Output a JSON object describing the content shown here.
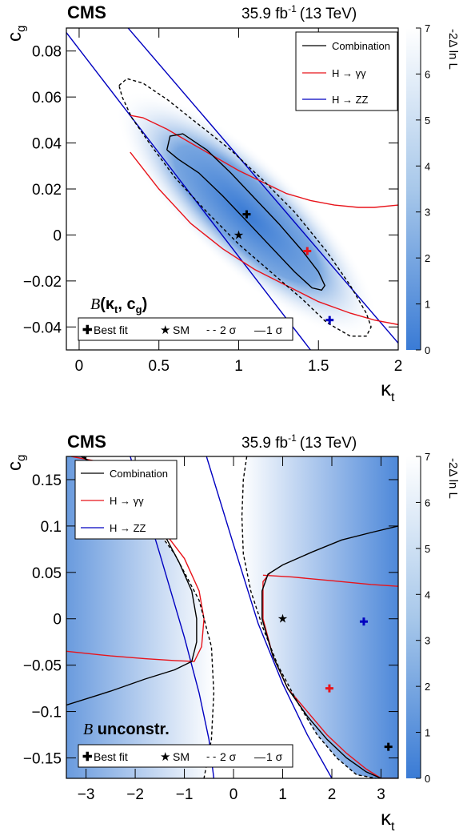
{
  "colors": {
    "combination": "#000000",
    "gammagamma": "#e8141b",
    "zz": "#0000c0",
    "colormap_low": "#3a7bd5",
    "colormap_high": "#ffffff"
  },
  "chart_data": [
    {
      "type": "heatmap",
      "experiment": "CMS",
      "luminosity": "35.9 fb",
      "lumi_exponent": "-1",
      "energy": "(13 TeV)",
      "xlabel": "κ",
      "xlabel_sub": "t",
      "ylabel": "c",
      "ylabel_sub": "g",
      "zlabel": "-2Δ ln L",
      "xlim": [
        -0.08,
        2.0
      ],
      "ylim": [
        -0.05,
        0.09
      ],
      "zlim": [
        0,
        7
      ],
      "x_ticks": [
        0,
        0.5,
        1,
        1.5,
        2
      ],
      "x_tick_labels": [
        "0",
        "0.5",
        "1",
        "1.5",
        "2"
      ],
      "y_ticks": [
        -0.04,
        -0.02,
        0,
        0.02,
        0.04,
        0.06,
        0.08
      ],
      "y_tick_labels": [
        "−0.04",
        "−0.02",
        "0",
        "0.02",
        "0.04",
        "0.06",
        "0.08"
      ],
      "z_ticks": [
        0,
        1,
        2,
        3,
        4,
        5,
        6,
        7
      ],
      "z_tick_labels": [
        "0",
        "1",
        "2",
        "3",
        "4",
        "5",
        "6",
        "7"
      ],
      "scenario_label": "B(κₜ, cᵍ)",
      "scenario_italic": "B",
      "scenario_rest": "(κ",
      "scenario_k_sub": "t",
      "scenario_mid": ", c",
      "scenario_c_sub": "g",
      "scenario_end": ")",
      "legend_placement": "top-right",
      "legend": [
        {
          "label": "Combination",
          "color": "#000000"
        },
        {
          "label": "H → γγ",
          "color": "#e8141b"
        },
        {
          "label": "H → ZZ",
          "color": "#0000c0"
        }
      ],
      "markers_legend": [
        {
          "symbol": "✚",
          "label": "Best fit"
        },
        {
          "symbol": "★",
          "label": "SM"
        },
        {
          "symbol": "- -",
          "label": "2 σ"
        },
        {
          "symbol": "—",
          "label": "1 σ"
        }
      ],
      "points": {
        "best_fit_combination": {
          "x": 1.05,
          "y": 0.009,
          "color": "#000000"
        },
        "sm": {
          "x": 1.0,
          "y": 0.0,
          "color": "#000000"
        },
        "best_fit_gammagamma": {
          "x": 1.43,
          "y": -0.007,
          "color": "#e8141b"
        },
        "best_fit_zz": {
          "x": 1.57,
          "y": -0.037,
          "color": "#0000c0"
        }
      },
      "heat_minimum": {
        "x": 1.05,
        "y": 0.009
      },
      "series": [
        {
          "name": "H → ZZ",
          "style": "solid",
          "color": "#0000c0",
          "x": [
            -0.08,
            1.45
          ],
          "y": [
            0.088,
            -0.05
          ]
        },
        {
          "name": "H → ZZ",
          "style": "solid",
          "color": "#0000c0",
          "x": [
            0.27,
            2.0
          ],
          "y": [
            0.093,
            -0.047
          ]
        },
        {
          "name": "H → γγ",
          "style": "solid",
          "color": "#e8141b",
          "x": [
            0.32,
            0.4,
            0.55,
            0.7,
            0.85,
            1.0,
            1.15,
            1.3,
            1.45,
            1.6,
            1.75,
            1.85,
            2.0
          ],
          "y": [
            0.052,
            0.051,
            0.046,
            0.04,
            0.034,
            0.028,
            0.023,
            0.018,
            0.015,
            0.013,
            0.012,
            0.012,
            0.013
          ]
        },
        {
          "name": "H → γγ",
          "style": "solid",
          "color": "#e8141b",
          "x": [
            0.32,
            0.5,
            0.7,
            0.9,
            1.1,
            1.3,
            1.5,
            1.7,
            1.85,
            2.0
          ],
          "y": [
            0.036,
            0.02,
            0.005,
            -0.006,
            -0.015,
            -0.022,
            -0.029,
            -0.034,
            -0.037,
            -0.039
          ]
        },
        {
          "name": "Combination",
          "style": "solid",
          "color": "#000000",
          "x": [
            0.55,
            0.57,
            0.65,
            0.8,
            0.95,
            1.1,
            1.25,
            1.4,
            1.5,
            1.54,
            1.52,
            1.46,
            1.35,
            1.2,
            1.05,
            0.9,
            0.75,
            0.62,
            0.55
          ],
          "y": [
            0.037,
            0.043,
            0.044,
            0.037,
            0.027,
            0.016,
            0.005,
            -0.007,
            -0.016,
            -0.022,
            -0.024,
            -0.023,
            -0.016,
            -0.005,
            0.006,
            0.017,
            0.027,
            0.033,
            0.037
          ]
        },
        {
          "name": "Combination",
          "style": "dashed",
          "color": "#000000",
          "x": [
            0.25,
            0.3,
            0.4,
            0.55,
            0.75,
            0.95,
            1.15,
            1.35,
            1.55,
            1.7,
            1.8,
            1.83,
            1.8,
            1.7,
            1.55,
            1.4,
            1.2,
            1.0,
            0.8,
            0.6,
            0.45,
            0.33,
            0.27,
            0.25
          ],
          "y": [
            0.065,
            0.068,
            0.066,
            0.059,
            0.048,
            0.037,
            0.024,
            0.01,
            -0.007,
            -0.022,
            -0.034,
            -0.04,
            -0.044,
            -0.044,
            -0.038,
            -0.028,
            -0.016,
            -0.004,
            0.01,
            0.025,
            0.039,
            0.051,
            0.06,
            0.065
          ]
        }
      ]
    },
    {
      "type": "heatmap",
      "experiment": "CMS",
      "luminosity": "35.9 fb",
      "lumi_exponent": "-1",
      "energy": "(13 TeV)",
      "xlabel": "κ",
      "xlabel_sub": "t",
      "ylabel": "c",
      "ylabel_sub": "g",
      "zlabel": "-2Δ ln L",
      "xlim": [
        -3.4,
        3.35
      ],
      "ylim": [
        -0.172,
        0.175
      ],
      "zlim": [
        0,
        7
      ],
      "x_ticks": [
        -3,
        -2,
        -1,
        0,
        1,
        2,
        3
      ],
      "x_tick_labels": [
        "−3",
        "−2",
        "−1",
        "0",
        "1",
        "2",
        "3"
      ],
      "y_ticks": [
        -0.15,
        -0.1,
        -0.05,
        0,
        0.05,
        0.1,
        0.15
      ],
      "y_tick_labels": [
        "−0.15",
        "−0.1",
        "−0.05",
        "0",
        "0.05",
        "0.1",
        "0.15"
      ],
      "z_ticks": [
        0,
        1,
        2,
        3,
        4,
        5,
        6,
        7
      ],
      "z_tick_labels": [
        "0",
        "1",
        "2",
        "3",
        "4",
        "5",
        "6",
        "7"
      ],
      "scenario_italic": "B",
      "scenario_rest": " unconstr.",
      "legend_placement": "top-left",
      "legend": [
        {
          "label": "Combination",
          "color": "#000000"
        },
        {
          "label": "H → γγ",
          "color": "#e8141b"
        },
        {
          "label": "H → ZZ",
          "color": "#0000c0"
        }
      ],
      "markers_legend": [
        {
          "symbol": "✚",
          "label": "Best fit"
        },
        {
          "symbol": "★",
          "label": "SM"
        },
        {
          "symbol": "- -",
          "label": "2 σ"
        },
        {
          "symbol": "—",
          "label": "1 σ"
        }
      ],
      "points": {
        "best_fit_combination": {
          "x": 3.15,
          "y": -0.138,
          "color": "#000000"
        },
        "sm": {
          "x": 1.0,
          "y": 0.0,
          "color": "#000000"
        },
        "best_fit_gammagamma": {
          "x": 1.95,
          "y": -0.075,
          "color": "#e8141b"
        },
        "best_fit_zz": {
          "x": 2.65,
          "y": -0.003,
          "color": "#0000c0"
        }
      },
      "series": [
        {
          "name": "H → ZZ",
          "style": "solid",
          "color": "#0000c0",
          "x": [
            -2.1,
            -1.5,
            -1.0,
            -0.7,
            -0.5,
            -0.4
          ],
          "y": [
            0.175,
            0.07,
            -0.02,
            -0.08,
            -0.13,
            -0.172
          ]
        },
        {
          "name": "H → ZZ",
          "style": "solid",
          "color": "#0000c0",
          "x": [
            -0.55,
            0.0,
            0.5,
            1.0,
            1.5,
            2.0
          ],
          "y": [
            0.175,
            0.08,
            -0.005,
            -0.07,
            -0.125,
            -0.172
          ]
        },
        {
          "name": "H → γγ",
          "style": "solid",
          "color": "#e8141b",
          "x": [
            -3.4,
            -2.5,
            -1.8,
            -1.2,
            -0.8,
            -0.65,
            -0.6,
            -0.7,
            -1.0,
            -1.5,
            -2.1,
            -2.8,
            -3.3
          ],
          "y": [
            -0.035,
            -0.04,
            -0.043,
            -0.045,
            -0.046,
            -0.03,
            0.0,
            0.03,
            0.065,
            0.1,
            0.14,
            0.17,
            0.175
          ]
        },
        {
          "name": "H → γγ",
          "style": "solid",
          "color": "#e8141b",
          "x": [
            0.75,
            0.6,
            0.6,
            0.8,
            1.1,
            1.5,
            1.9,
            2.3,
            2.7,
            3.0,
            3.3
          ],
          "y": [
            0.05,
            0.04,
            0.0,
            -0.04,
            -0.075,
            -0.1,
            -0.125,
            -0.145,
            -0.162,
            -0.172,
            -0.172
          ]
        },
        {
          "name": "H → γγ",
          "style": "solid",
          "color": "#e8141b",
          "x": [
            0.6,
            1.2,
            2.0,
            2.8,
            3.35
          ],
          "y": [
            0.047,
            0.045,
            0.041,
            0.037,
            0.035
          ]
        },
        {
          "name": "Combination",
          "style": "solid",
          "color": "#000000",
          "x": [
            -3.4,
            -2.5,
            -1.8,
            -1.2,
            -0.85,
            -0.75,
            -0.75,
            -0.85,
            -1.1,
            -1.5,
            -2.0,
            -2.6,
            -3.1
          ],
          "y": [
            -0.093,
            -0.078,
            -0.065,
            -0.055,
            -0.046,
            -0.025,
            0.0,
            0.03,
            0.06,
            0.1,
            0.13,
            0.16,
            0.175
          ]
        },
        {
          "name": "Combination",
          "style": "solid",
          "color": "#000000",
          "x": [
            3.35,
            2.8,
            2.2,
            1.6,
            1.0,
            0.7,
            0.58,
            0.58,
            0.8,
            1.1,
            1.5,
            1.9,
            2.3,
            2.7,
            3.0,
            3.35
          ],
          "y": [
            0.1,
            0.093,
            0.085,
            0.072,
            0.058,
            0.048,
            0.03,
            0.0,
            -0.04,
            -0.075,
            -0.105,
            -0.13,
            -0.15,
            -0.165,
            -0.172,
            -0.172
          ]
        },
        {
          "name": "Combination",
          "style": "dashed",
          "color": "#000000",
          "x": [
            -3.05,
            -2.5,
            -1.9,
            -1.2,
            -0.7,
            -0.45,
            -0.4,
            -0.45,
            -0.6
          ],
          "y": [
            0.175,
            0.15,
            0.12,
            0.07,
            0.02,
            -0.03,
            -0.08,
            -0.13,
            -0.172
          ]
        },
        {
          "name": "Combination",
          "style": "dashed",
          "color": "#000000",
          "x": [
            0.27,
            0.2,
            0.17,
            0.2,
            0.35,
            0.6,
            0.9,
            1.3,
            1.7,
            2.1,
            2.5,
            2.9
          ],
          "y": [
            0.175,
            0.15,
            0.11,
            0.07,
            0.03,
            -0.01,
            -0.05,
            -0.09,
            -0.125,
            -0.15,
            -0.168,
            -0.172
          ]
        }
      ]
    }
  ]
}
